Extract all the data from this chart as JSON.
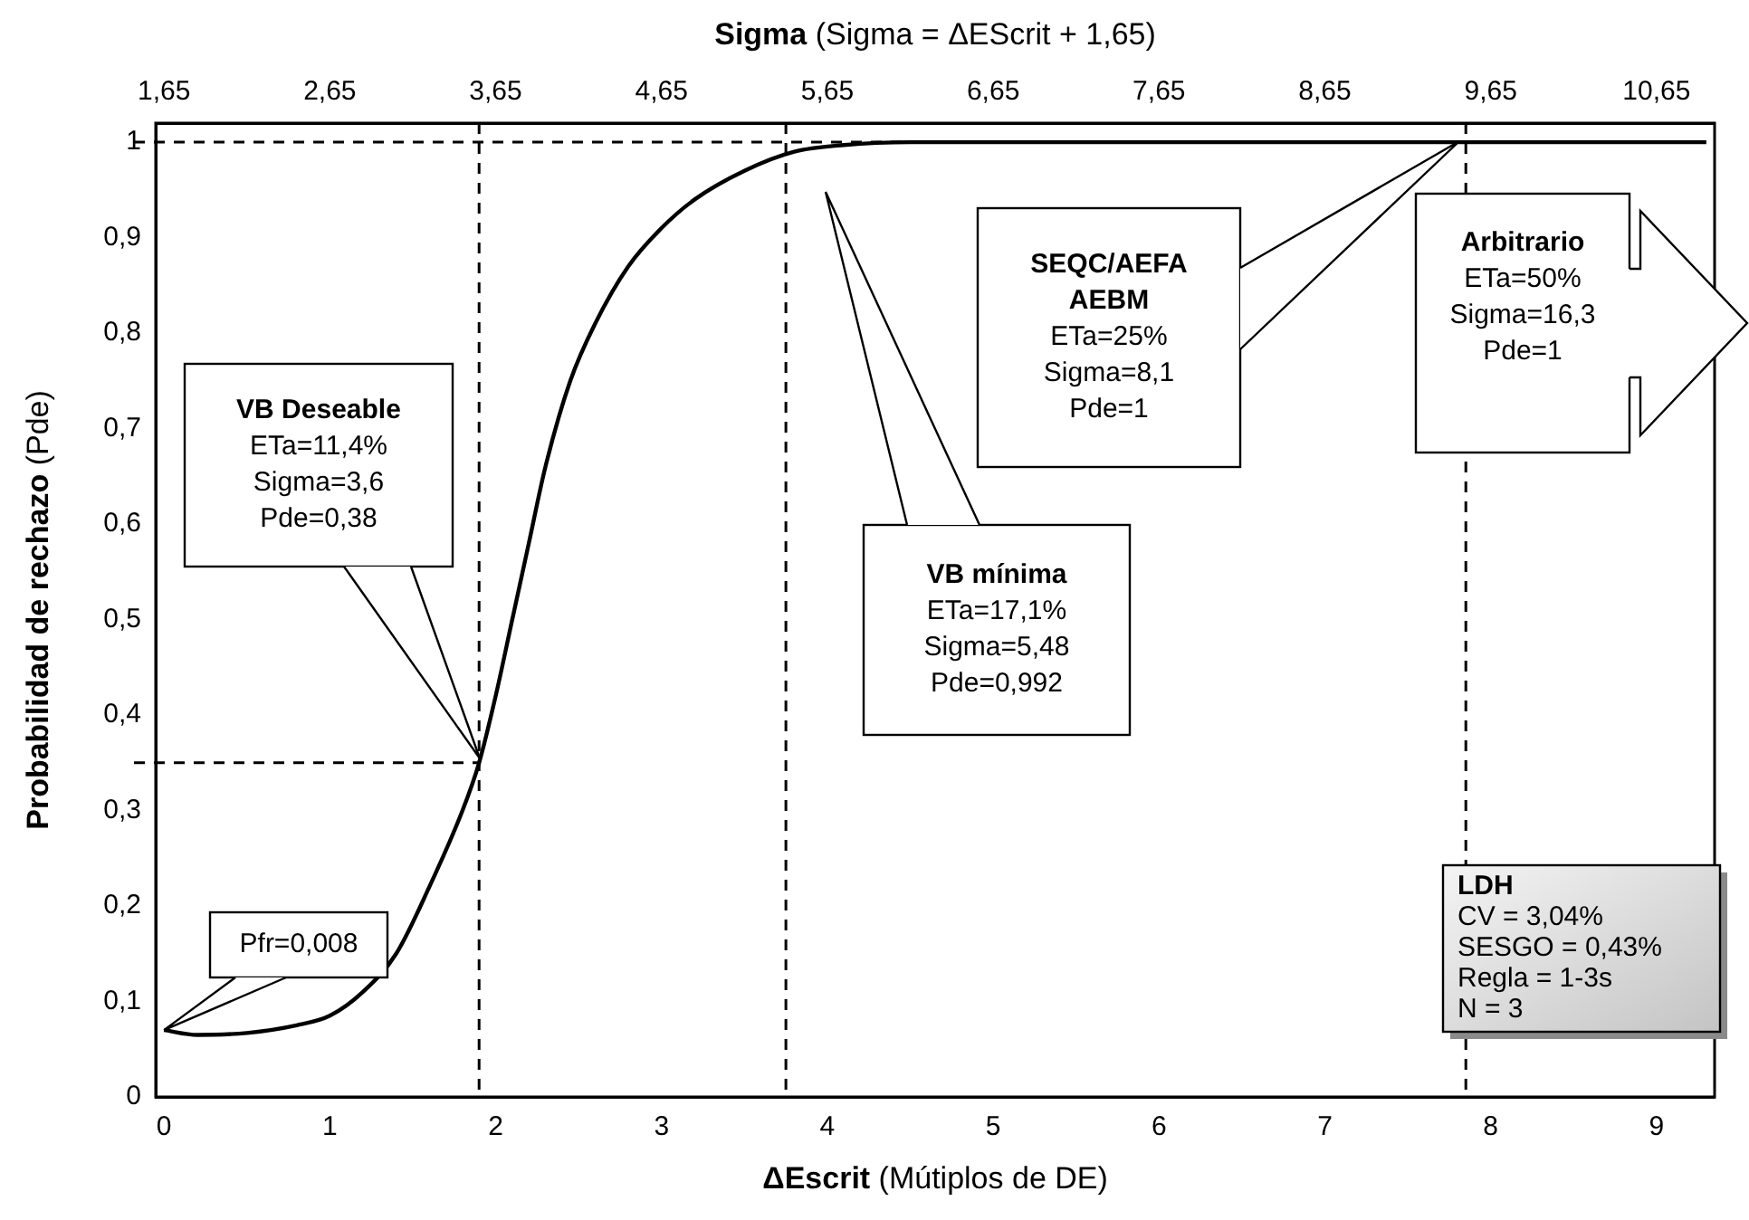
{
  "chart_data": {
    "type": "line",
    "xlabel": "ΔEscrit (Mútiplos de DE)",
    "x2label": "Sigma (Sigma = ΔEScrit + 1,65)",
    "ylabel": "Probabilidad de rechazo (Pde)",
    "series": [
      {
        "color": "#000000",
        "x": [
          0,
          0.2,
          0.5,
          0.8,
          1.0,
          1.2,
          1.4,
          1.6,
          1.8,
          1.9,
          2.0,
          2.1,
          2.2,
          2.3,
          2.45,
          2.6,
          2.8,
          3.0,
          3.2,
          3.5,
          3.8,
          4.1,
          4.5,
          5,
          6,
          7,
          8,
          9.3
        ],
        "values": [
          0.07,
          0.065,
          0.067,
          0.075,
          0.085,
          0.11,
          0.15,
          0.22,
          0.3,
          0.35,
          0.42,
          0.5,
          0.58,
          0.66,
          0.75,
          0.81,
          0.87,
          0.91,
          0.94,
          0.97,
          0.99,
          0.997,
          1,
          1,
          1,
          1,
          1,
          1
        ]
      }
    ],
    "xlim": [
      -0.05,
      9.35
    ],
    "xticks": [
      0,
      1,
      2,
      3,
      4,
      5,
      6,
      7,
      8,
      9
    ],
    "x2lim": [
      1.6,
      11.0
    ],
    "x2ticks": [
      {
        "value": 1.65,
        "label": "1,65"
      },
      {
        "value": 2.65,
        "label": "2,65"
      },
      {
        "value": 3.65,
        "label": "3,65"
      },
      {
        "value": 4.65,
        "label": "4,65"
      },
      {
        "value": 5.65,
        "label": "5,65"
      },
      {
        "value": 6.65,
        "label": "6,65"
      },
      {
        "value": 7.65,
        "label": "7,65"
      },
      {
        "value": 8.65,
        "label": "8,65"
      },
      {
        "value": 9.65,
        "label": "9,65"
      },
      {
        "value": 10.65,
        "label": "10,65"
      }
    ],
    "ylim": [
      0,
      1.02
    ],
    "yticks": [
      0,
      {
        "value": 0.1,
        "label": "0,1"
      },
      {
        "value": 0.2,
        "label": "0,2"
      },
      {
        "value": 0.3,
        "label": "0,3"
      },
      {
        "value": 0.4,
        "label": "0,4"
      },
      {
        "value": 0.5,
        "label": "0,5"
      },
      {
        "value": 0.6,
        "label": "0,6"
      },
      {
        "value": 0.7,
        "label": "0,7"
      },
      {
        "value": 0.8,
        "label": "0,8"
      },
      {
        "value": 0.9,
        "label": "0,9"
      },
      1
    ],
    "ref_lines": [
      {
        "axis": "x",
        "value": 1.9,
        "line_style": "dashed",
        "color": "#000000"
      },
      {
        "axis": "x",
        "value": 3.75,
        "line_style": "dashed",
        "color": "#000000"
      },
      {
        "axis": "x",
        "value": 7.85,
        "line_style": "dashed",
        "color": "#000000"
      },
      {
        "axis": "y",
        "value": 0.35,
        "line_style": "dashed",
        "color": "#000000"
      },
      {
        "axis": "y",
        "value": 1,
        "line_style": "dashed",
        "color": "#000000"
      }
    ],
    "annotations": [
      "VB Deseable\nETa=11,4%\nSigma=3,6\nPde=0,38",
      {
        "text": "Pfr=0,008",
        "x": 0,
        "y": 0.07
      },
      "VB mínima\nETa=17,1%\nSigma=5,48\nPde=0,992",
      "SEQC/AEFA\nAEBM\nETa=25%\nSigma=8,1\nPde=1",
      "Arbitrario\nETa=50%\nSigma=16,3\nPde=1",
      "LDH\nCV = 3,04%\nSESGO = 0,43%\nRegla = 1-3s\nN = 3"
    ],
    "grid": false,
    "legend": false,
    "marker": "none",
    "line_style": "solid"
  }
}
